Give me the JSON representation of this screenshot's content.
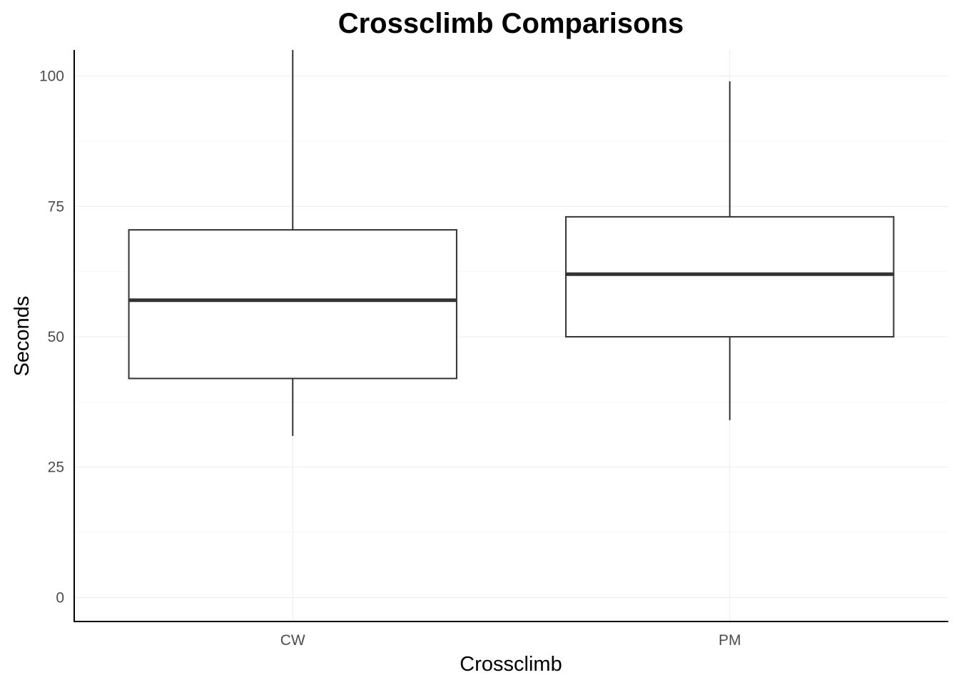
{
  "chart_data": {
    "type": "boxplot",
    "title": "Crossclimb Comparisons",
    "xlabel": "Crossclimb",
    "ylabel": "Seconds",
    "categories": [
      "CW",
      "PM"
    ],
    "boxes": [
      {
        "category": "CW",
        "whisker_low": 31,
        "q1": 42,
        "median": 57,
        "q3": 70.5,
        "whisker_high": 105
      },
      {
        "category": "PM",
        "whisker_low": 34,
        "q1": 50,
        "median": 62,
        "q3": 73,
        "whisker_high": 99
      }
    ],
    "yticks": [
      0,
      25,
      50,
      75,
      100
    ],
    "ylim": [
      -4.6,
      105
    ],
    "grid": true,
    "legend": "none",
    "colors": {
      "box_fill": "#ffffff",
      "box_stroke": "#333333",
      "grid": "#ebebeb"
    }
  }
}
